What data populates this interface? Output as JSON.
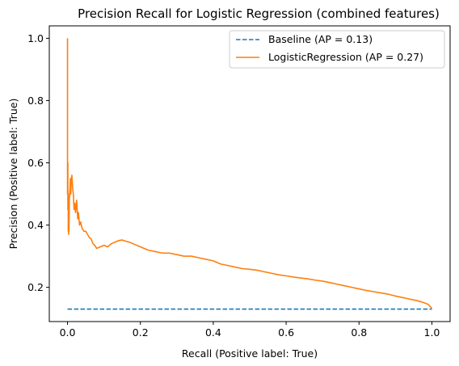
{
  "chart_data": {
    "type": "line",
    "title": "Precision Recall for Logistic Regression (combined features)",
    "xlabel": "Recall (Positive label: True)",
    "ylabel": "Precision (Positive label: True)",
    "xlim": [
      -0.05,
      1.05
    ],
    "ylim": [
      0.09,
      1.04
    ],
    "xticks": [
      0.0,
      0.2,
      0.4,
      0.6,
      0.8,
      1.0
    ],
    "xtick_labels": [
      "0.0",
      "0.2",
      "0.4",
      "0.6",
      "0.8",
      "1.0"
    ],
    "yticks": [
      0.2,
      0.4,
      0.6,
      0.8,
      1.0
    ],
    "ytick_labels": [
      "0.2",
      "0.4",
      "0.6",
      "0.8",
      "1.0"
    ],
    "grid": false,
    "legend_position": "top-right",
    "series": [
      {
        "name": "Baseline (AP = 0.13)",
        "color": "#1f77b4",
        "style": "dashed",
        "x": [
          0.0,
          1.0
        ],
        "y": [
          0.13,
          0.13
        ]
      },
      {
        "name": "LogisticRegression (AP = 0.27)",
        "color": "#ff7f0e",
        "style": "solid",
        "x": [
          0.0,
          0.0,
          0.001,
          0.001,
          0.002,
          0.002,
          0.003,
          0.003,
          0.004,
          0.004,
          0.005,
          0.006,
          0.007,
          0.008,
          0.009,
          0.01,
          0.012,
          0.014,
          0.016,
          0.018,
          0.02,
          0.022,
          0.025,
          0.028,
          0.03,
          0.033,
          0.036,
          0.04,
          0.045,
          0.05,
          0.055,
          0.06,
          0.065,
          0.07,
          0.075,
          0.08,
          0.09,
          0.1,
          0.11,
          0.12,
          0.13,
          0.14,
          0.15,
          0.16,
          0.17,
          0.18,
          0.2,
          0.22,
          0.24,
          0.26,
          0.28,
          0.3,
          0.32,
          0.34,
          0.36,
          0.38,
          0.4,
          0.42,
          0.44,
          0.46,
          0.48,
          0.5,
          0.52,
          0.54,
          0.56,
          0.58,
          0.6,
          0.62,
          0.64,
          0.66,
          0.68,
          0.7,
          0.72,
          0.74,
          0.76,
          0.78,
          0.8,
          0.82,
          0.84,
          0.86,
          0.88,
          0.9,
          0.92,
          0.94,
          0.96,
          0.98,
          0.99,
          1.0
        ],
        "y": [
          1.0,
          0.5,
          0.6,
          0.45,
          0.5,
          0.38,
          0.45,
          0.37,
          0.42,
          0.38,
          0.48,
          0.5,
          0.52,
          0.55,
          0.5,
          0.54,
          0.56,
          0.52,
          0.5,
          0.45,
          0.47,
          0.44,
          0.48,
          0.42,
          0.44,
          0.4,
          0.41,
          0.39,
          0.38,
          0.38,
          0.37,
          0.36,
          0.355,
          0.34,
          0.335,
          0.325,
          0.33,
          0.335,
          0.33,
          0.34,
          0.345,
          0.35,
          0.352,
          0.348,
          0.345,
          0.34,
          0.33,
          0.32,
          0.315,
          0.31,
          0.31,
          0.305,
          0.3,
          0.3,
          0.295,
          0.29,
          0.285,
          0.275,
          0.27,
          0.265,
          0.26,
          0.258,
          0.255,
          0.25,
          0.245,
          0.24,
          0.237,
          0.233,
          0.23,
          0.227,
          0.223,
          0.22,
          0.215,
          0.21,
          0.205,
          0.2,
          0.195,
          0.19,
          0.186,
          0.182,
          0.178,
          0.172,
          0.167,
          0.162,
          0.157,
          0.15,
          0.145,
          0.132
        ]
      }
    ]
  }
}
